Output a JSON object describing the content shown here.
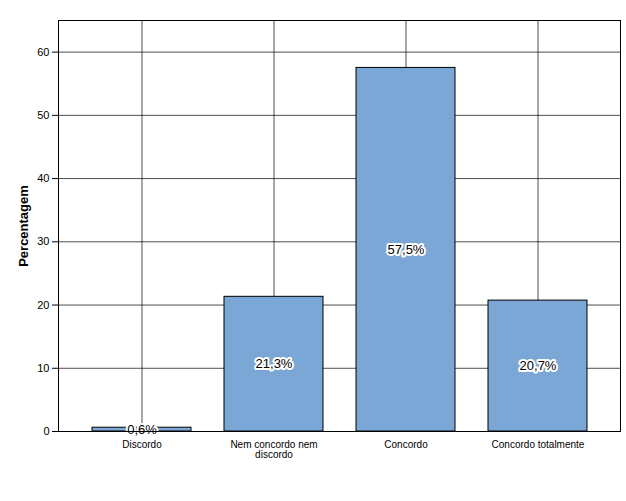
{
  "chart_data": {
    "type": "bar",
    "ylabel": "Percentagem",
    "categories": [
      "Discordo",
      "Nem concordo nem discordo",
      "Concordo",
      "Concordo totalmente"
    ],
    "values": [
      0.6,
      21.3,
      57.5,
      20.7
    ],
    "value_labels": [
      "0,6%",
      "21,3%",
      "57,5%",
      "20,7%"
    ],
    "data_labels": true,
    "color": "#7ba7d7",
    "ylim": [
      0,
      65
    ],
    "yticks": [
      0,
      10,
      20,
      30,
      40,
      50,
      60
    ],
    "grid": true
  }
}
